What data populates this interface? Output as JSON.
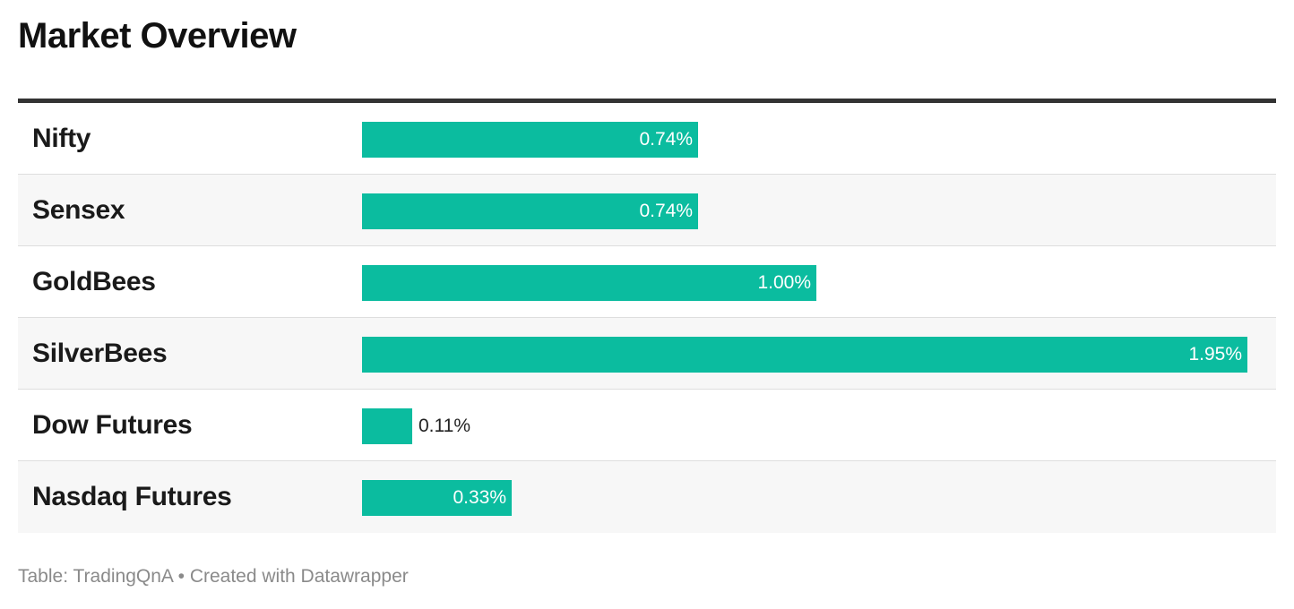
{
  "title": "Market Overview",
  "footer": {
    "source": "Table: TradingQnA",
    "sep": " • ",
    "credit": "Created with Datawrapper"
  },
  "colors": {
    "bar": "#0bbc9f",
    "rule": "#333333"
  },
  "chart_data": {
    "type": "bar",
    "orientation": "horizontal",
    "categories": [
      "Nifty",
      "Sensex",
      "GoldBees",
      "SilverBees",
      "Dow Futures",
      "Nasdaq Futures"
    ],
    "values": [
      0.74,
      0.74,
      1.0,
      1.95,
      0.11,
      0.33
    ],
    "labels": [
      "0.74%",
      "0.74%",
      "1.00%",
      "1.95%",
      "0.11%",
      "0.33%"
    ],
    "xlim": [
      0,
      1.95
    ]
  }
}
